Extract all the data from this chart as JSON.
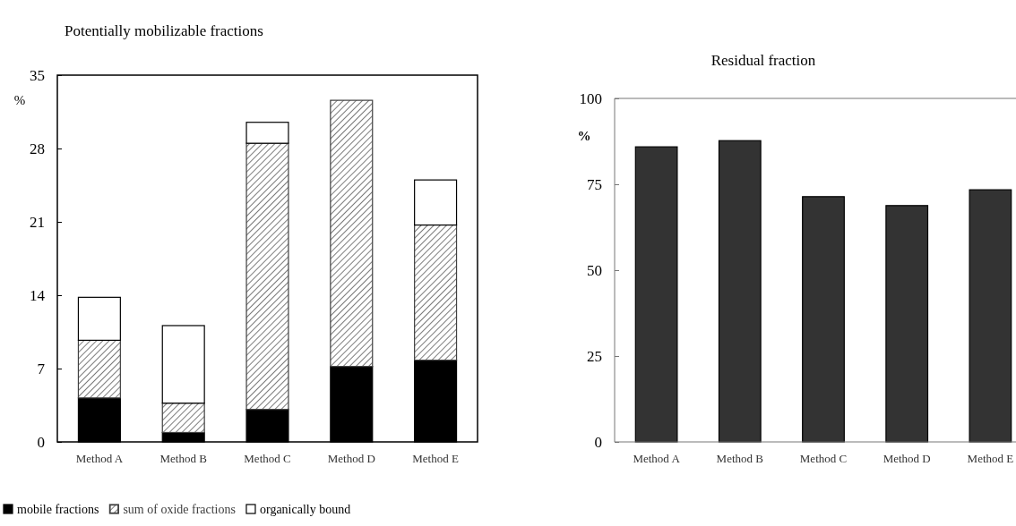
{
  "chart_data": [
    {
      "type": "bar",
      "title": "Potentially mobilizable fractions",
      "ylabel": "%",
      "categories": [
        "Method A",
        "Method B",
        "Method C",
        "Method D",
        "Method E"
      ],
      "stacked": true,
      "legend": "bottom",
      "ylim": [
        0,
        35
      ],
      "yticks": [
        0,
        7,
        14,
        21,
        28,
        35
      ],
      "series": [
        {
          "name": "mobile fractions",
          "color": "#000000",
          "values": [
            4.2,
            0.9,
            3.1,
            7.2,
            7.8
          ]
        },
        {
          "name": "sum of oxide fractions",
          "color": "#404040",
          "values": [
            5.5,
            2.8,
            25.4,
            25.4,
            12.9
          ]
        },
        {
          "name": "organically bound",
          "color": "#ffffff",
          "values": [
            4.1,
            7.4,
            2.0,
            null,
            4.3
          ]
        }
      ]
    },
    {
      "type": "bar",
      "title": "Residual fraction",
      "ylabel": "%",
      "categories": [
        "Method A",
        "Method B",
        "Method C",
        "Method D",
        "Method E"
      ],
      "ylim": [
        0,
        100
      ],
      "yticks": [
        0,
        25,
        50,
        75,
        100
      ],
      "series": [
        {
          "color": "#333333",
          "values": [
            85.9,
            87.7,
            71.4,
            68.8,
            73.4
          ]
        }
      ]
    }
  ]
}
